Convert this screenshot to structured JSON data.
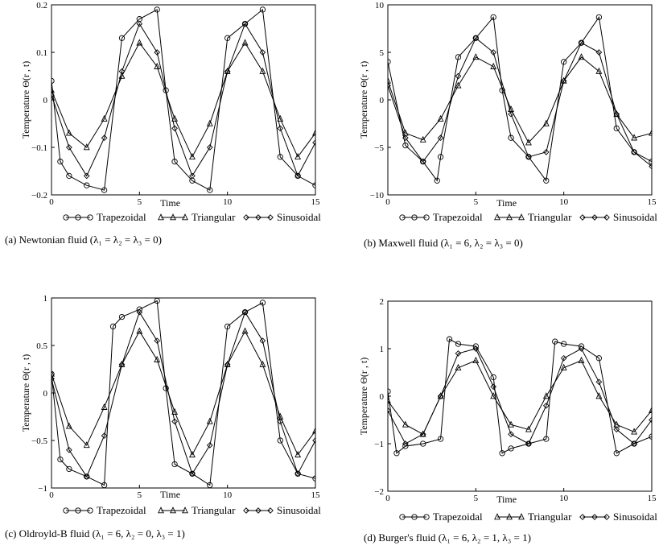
{
  "figure": {
    "panels": [
      {
        "id": "a",
        "caption_pre": "(a) Newtonian fluid ",
        "caption_params": "(λ₁ = λ₂ = λ₃ = 0)",
        "ylabel": "Temperature Θ(r , t)",
        "xlabel": "Time",
        "ylim": [
          -0.2,
          0.2
        ],
        "yticks": [
          "0.2",
          "0.1",
          "0",
          "−0.1",
          "−0.2"
        ],
        "ytick_values": [
          0.2,
          0.1,
          0,
          -0.1,
          -0.2
        ],
        "xticks": [
          "0",
          "5",
          "10",
          "15"
        ],
        "xtick_values": [
          0,
          5,
          10,
          15
        ],
        "legend": [
          "Trapezoidal",
          "Triangular",
          "Sinusoidal"
        ]
      },
      {
        "id": "b",
        "caption_pre": "(b) Maxwell fluid ",
        "caption_params": "(λ₁ = 6,  λ₂ = λ₃ = 0)",
        "ylabel": "Temperature Θ(r , t)",
        "xlabel": "Time",
        "ylim": [
          -10,
          10
        ],
        "yticks": [
          "10",
          "5",
          "0",
          "−5",
          "−10"
        ],
        "ytick_values": [
          10,
          5,
          0,
          -5,
          -10
        ],
        "xticks": [
          "0",
          "5",
          "10",
          "15"
        ],
        "xtick_values": [
          0,
          5,
          10,
          15
        ],
        "legend": [
          "Trapezoidal",
          "Triangular",
          "Sinusoidal"
        ]
      },
      {
        "id": "c",
        "caption_pre": "(c) Oldroyld-B fluid ",
        "caption_params": "(λ₁ = 6,  λ₂ = 0,  λ₃ = 1)",
        "ylabel": "Temperature Θ(r , t)",
        "xlabel": "Time",
        "ylim": [
          -1,
          1
        ],
        "yticks": [
          "1",
          "0.5",
          "0",
          "−0.5",
          "−1"
        ],
        "ytick_values": [
          1,
          0.5,
          0,
          -0.5,
          -1
        ],
        "xticks": [
          "0",
          "5",
          "10",
          "15"
        ],
        "xtick_values": [
          0,
          5,
          10,
          15
        ],
        "legend": [
          "Trapezoidal",
          "Triangular",
          "Sinusoidal"
        ]
      },
      {
        "id": "d",
        "caption_pre": "(d) Burger's fluid ",
        "caption_params": "(λ₁ = 6,  λ₂ = 1,  λ₃ = 1)",
        "ylabel": "Temperature Θ(r , t)",
        "xlabel": "Time",
        "ylim": [
          -2,
          2
        ],
        "yticks": [
          "2",
          "1",
          "0",
          "−1",
          "−2"
        ],
        "ytick_values": [
          2,
          1,
          0,
          -1,
          -2
        ],
        "xticks": [
          "0",
          "5",
          "10",
          "15"
        ],
        "xtick_values": [
          0,
          5,
          10,
          15
        ],
        "legend": [
          "Trapezoidal",
          "Triangular",
          "Sinusoidal"
        ]
      }
    ]
  },
  "chart_data": [
    {
      "type": "line",
      "title": "(a) Newtonian fluid (λ1 = λ2 = λ3 = 0)",
      "xlabel": "Time",
      "ylabel": "Temperature Θ(r , t)",
      "xlim": [
        0,
        15
      ],
      "ylim": [
        -0.2,
        0.2
      ],
      "series": [
        {
          "name": "Trapezoidal",
          "marker": "circle",
          "x": [
            0,
            0.5,
            1,
            2,
            3,
            4,
            5,
            6,
            6.5,
            7,
            8,
            9,
            10,
            11,
            12,
            13,
            14,
            15
          ],
          "y": [
            0.04,
            -0.13,
            -0.16,
            -0.18,
            -0.19,
            0.13,
            0.17,
            0.19,
            0.02,
            -0.13,
            -0.17,
            -0.19,
            0.13,
            0.16,
            0.19,
            -0.12,
            -0.16,
            -0.18
          ]
        },
        {
          "name": "Triangular",
          "marker": "triangle",
          "x": [
            0,
            1,
            2,
            3,
            4,
            5,
            6,
            7,
            8,
            9,
            10,
            11,
            12,
            13,
            14,
            15
          ],
          "y": [
            0.02,
            -0.07,
            -0.1,
            -0.04,
            0.05,
            0.12,
            0.07,
            -0.04,
            -0.12,
            -0.05,
            0.06,
            0.12,
            0.06,
            -0.04,
            -0.12,
            -0.07
          ]
        },
        {
          "name": "Sinusoidal",
          "marker": "diamond",
          "x": [
            0,
            1,
            2,
            3,
            4,
            5,
            6,
            7,
            8,
            9,
            10,
            11,
            12,
            13,
            14,
            15
          ],
          "y": [
            0.01,
            -0.1,
            -0.16,
            -0.08,
            0.06,
            0.16,
            0.1,
            -0.06,
            -0.16,
            -0.1,
            0.06,
            0.16,
            0.1,
            -0.06,
            -0.16,
            -0.09
          ]
        }
      ]
    },
    {
      "type": "line",
      "title": "(b) Maxwell fluid (λ1 = 6, λ2 = λ3 = 0)",
      "xlabel": "Time",
      "ylabel": "Temperature Θ(r , t)",
      "xlim": [
        0,
        15
      ],
      "ylim": [
        -10,
        10
      ],
      "series": [
        {
          "name": "Trapezoidal",
          "marker": "circle",
          "x": [
            0,
            1,
            2,
            2.8,
            3,
            4,
            5,
            6,
            6.5,
            7,
            8,
            9,
            10,
            11,
            12,
            13,
            14,
            15
          ],
          "y": [
            4,
            -4.8,
            -6.5,
            -8.5,
            -6,
            4.5,
            6.5,
            8.7,
            1,
            -4,
            -6,
            -8.5,
            4,
            6,
            8.7,
            -3,
            -5.5,
            -6.5
          ]
        },
        {
          "name": "Triangular",
          "marker": "triangle",
          "x": [
            0,
            1,
            2,
            3,
            4,
            5,
            6,
            7,
            8,
            9,
            10,
            11,
            12,
            13,
            14,
            15
          ],
          "y": [
            2,
            -3.5,
            -4.2,
            -2,
            1.5,
            4.5,
            3.5,
            -1,
            -4.5,
            -2.5,
            2,
            4.5,
            3,
            -1.5,
            -4,
            -3.5
          ]
        },
        {
          "name": "Sinusoidal",
          "marker": "diamond",
          "x": [
            0,
            1,
            2,
            3,
            4,
            5,
            6,
            7,
            8,
            9,
            10,
            11,
            12,
            13,
            14,
            15
          ],
          "y": [
            1.5,
            -4,
            -6.5,
            -4,
            2.5,
            6.5,
            5,
            -1.5,
            -6,
            -5.5,
            2,
            6,
            5,
            -1.5,
            -5.5,
            -7
          ]
        }
      ]
    },
    {
      "type": "line",
      "title": "(c) Oldroyld-B fluid (λ1 = 6, λ2 = 0, λ3 = 1)",
      "xlabel": "Time",
      "ylabel": "Temperature Θ(r , t)",
      "xlim": [
        0,
        15
      ],
      "ylim": [
        -1,
        1
      ],
      "series": [
        {
          "name": "Trapezoidal",
          "marker": "circle",
          "x": [
            0,
            0.5,
            1,
            2,
            3,
            3.5,
            4,
            5,
            6,
            6.5,
            7,
            8,
            9,
            10,
            11,
            12,
            13,
            14,
            15
          ],
          "y": [
            0.2,
            -0.7,
            -0.8,
            -0.88,
            -0.97,
            0.7,
            0.8,
            0.88,
            0.97,
            0.05,
            -0.75,
            -0.85,
            -0.97,
            0.7,
            0.85,
            0.95,
            -0.5,
            -0.85,
            -0.9
          ]
        },
        {
          "name": "Triangular",
          "marker": "triangle",
          "x": [
            0,
            1,
            2,
            3,
            4,
            5,
            6,
            7,
            8,
            9,
            10,
            11,
            12,
            13,
            14,
            15
          ],
          "y": [
            0.2,
            -0.35,
            -0.55,
            -0.15,
            0.3,
            0.65,
            0.35,
            -0.2,
            -0.65,
            -0.3,
            0.3,
            0.65,
            0.3,
            -0.25,
            -0.65,
            -0.4
          ]
        },
        {
          "name": "Sinusoidal",
          "marker": "diamond",
          "x": [
            0,
            1,
            2,
            3,
            4,
            5,
            6,
            7,
            8,
            9,
            10,
            11,
            12,
            13,
            14,
            15
          ],
          "y": [
            0.15,
            -0.6,
            -0.88,
            -0.45,
            0.3,
            0.85,
            0.55,
            -0.3,
            -0.85,
            -0.55,
            0.3,
            0.85,
            0.55,
            -0.3,
            -0.85,
            -0.5
          ]
        }
      ]
    },
    {
      "type": "line",
      "title": "(d) Burger's fluid (λ1 = 6, λ2 = 1, λ3 = 1)",
      "xlabel": "Time",
      "ylabel": "Temperature Θ(r , t)",
      "xlim": [
        0,
        15
      ],
      "ylim": [
        -2,
        2
      ],
      "series": [
        {
          "name": "Trapezoidal",
          "marker": "circle",
          "x": [
            0,
            0.5,
            1,
            2,
            3,
            3.5,
            4,
            5,
            6,
            6.5,
            7,
            8,
            9,
            9.5,
            10,
            11,
            12,
            13,
            14,
            15
          ],
          "y": [
            0.1,
            -1.2,
            -1.05,
            -1,
            -0.9,
            1.2,
            1.1,
            1.05,
            0.4,
            -1.2,
            -1.1,
            -1,
            -0.9,
            1.15,
            1.1,
            1.05,
            0.8,
            -1.2,
            -1,
            -0.85
          ]
        },
        {
          "name": "Triangular",
          "marker": "triangle",
          "x": [
            0,
            1,
            2,
            3,
            4,
            5,
            6,
            7,
            8,
            9,
            10,
            11,
            12,
            13,
            14,
            15
          ],
          "y": [
            -0.1,
            -0.6,
            -0.8,
            0,
            0.6,
            0.75,
            0,
            -0.6,
            -0.7,
            0,
            0.6,
            0.75,
            0,
            -0.6,
            -0.75,
            -0.3
          ]
        },
        {
          "name": "Sinusoidal",
          "marker": "diamond",
          "x": [
            0,
            1,
            2,
            3,
            4,
            5,
            6,
            7,
            8,
            9,
            10,
            11,
            12,
            13,
            14,
            15
          ],
          "y": [
            -0.3,
            -1,
            -0.8,
            0,
            0.9,
            1,
            0.2,
            -0.8,
            -1,
            -0.2,
            0.8,
            1,
            0.3,
            -0.7,
            -1,
            -0.5
          ]
        }
      ]
    }
  ]
}
